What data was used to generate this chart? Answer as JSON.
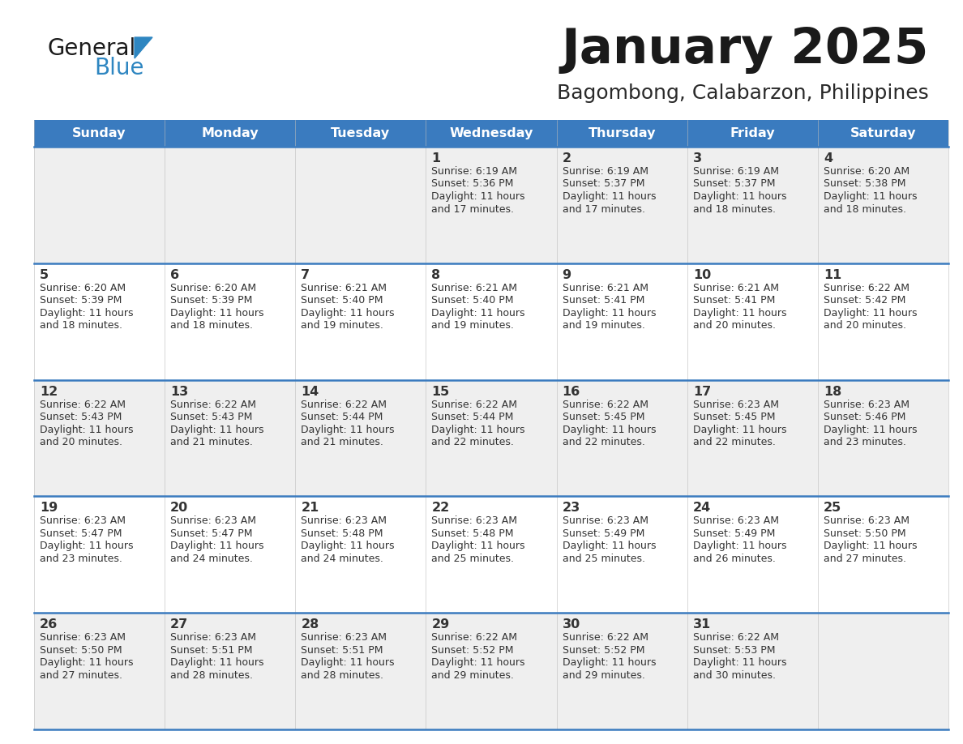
{
  "title": "January 2025",
  "subtitle": "Bagombong, Calabarzon, Philippines",
  "header_bg_color": "#3A7BBF",
  "header_text_color": "#FFFFFF",
  "day_names": [
    "Sunday",
    "Monday",
    "Tuesday",
    "Wednesday",
    "Thursday",
    "Friday",
    "Saturday"
  ],
  "row_colors": [
    "#EFEFEF",
    "#FFFFFF"
  ],
  "border_color": "#3A7BBF",
  "text_color": "#333333",
  "calendar_data": [
    [
      {
        "day": "",
        "sunrise": "",
        "sunset": "",
        "daylight_h": "",
        "daylight_m": ""
      },
      {
        "day": "",
        "sunrise": "",
        "sunset": "",
        "daylight_h": "",
        "daylight_m": ""
      },
      {
        "day": "",
        "sunrise": "",
        "sunset": "",
        "daylight_h": "",
        "daylight_m": ""
      },
      {
        "day": "1",
        "sunrise": "6:19 AM",
        "sunset": "5:36 PM",
        "daylight_h": "11 hours",
        "daylight_m": "and 17 minutes."
      },
      {
        "day": "2",
        "sunrise": "6:19 AM",
        "sunset": "5:37 PM",
        "daylight_h": "11 hours",
        "daylight_m": "and 17 minutes."
      },
      {
        "day": "3",
        "sunrise": "6:19 AM",
        "sunset": "5:37 PM",
        "daylight_h": "11 hours",
        "daylight_m": "and 18 minutes."
      },
      {
        "day": "4",
        "sunrise": "6:20 AM",
        "sunset": "5:38 PM",
        "daylight_h": "11 hours",
        "daylight_m": "and 18 minutes."
      }
    ],
    [
      {
        "day": "5",
        "sunrise": "6:20 AM",
        "sunset": "5:39 PM",
        "daylight_h": "11 hours",
        "daylight_m": "and 18 minutes."
      },
      {
        "day": "6",
        "sunrise": "6:20 AM",
        "sunset": "5:39 PM",
        "daylight_h": "11 hours",
        "daylight_m": "and 18 minutes."
      },
      {
        "day": "7",
        "sunrise": "6:21 AM",
        "sunset": "5:40 PM",
        "daylight_h": "11 hours",
        "daylight_m": "and 19 minutes."
      },
      {
        "day": "8",
        "sunrise": "6:21 AM",
        "sunset": "5:40 PM",
        "daylight_h": "11 hours",
        "daylight_m": "and 19 minutes."
      },
      {
        "day": "9",
        "sunrise": "6:21 AM",
        "sunset": "5:41 PM",
        "daylight_h": "11 hours",
        "daylight_m": "and 19 minutes."
      },
      {
        "day": "10",
        "sunrise": "6:21 AM",
        "sunset": "5:41 PM",
        "daylight_h": "11 hours",
        "daylight_m": "and 20 minutes."
      },
      {
        "day": "11",
        "sunrise": "6:22 AM",
        "sunset": "5:42 PM",
        "daylight_h": "11 hours",
        "daylight_m": "and 20 minutes."
      }
    ],
    [
      {
        "day": "12",
        "sunrise": "6:22 AM",
        "sunset": "5:43 PM",
        "daylight_h": "11 hours",
        "daylight_m": "and 20 minutes."
      },
      {
        "day": "13",
        "sunrise": "6:22 AM",
        "sunset": "5:43 PM",
        "daylight_h": "11 hours",
        "daylight_m": "and 21 minutes."
      },
      {
        "day": "14",
        "sunrise": "6:22 AM",
        "sunset": "5:44 PM",
        "daylight_h": "11 hours",
        "daylight_m": "and 21 minutes."
      },
      {
        "day": "15",
        "sunrise": "6:22 AM",
        "sunset": "5:44 PM",
        "daylight_h": "11 hours",
        "daylight_m": "and 22 minutes."
      },
      {
        "day": "16",
        "sunrise": "6:22 AM",
        "sunset": "5:45 PM",
        "daylight_h": "11 hours",
        "daylight_m": "and 22 minutes."
      },
      {
        "day": "17",
        "sunrise": "6:23 AM",
        "sunset": "5:45 PM",
        "daylight_h": "11 hours",
        "daylight_m": "and 22 minutes."
      },
      {
        "day": "18",
        "sunrise": "6:23 AM",
        "sunset": "5:46 PM",
        "daylight_h": "11 hours",
        "daylight_m": "and 23 minutes."
      }
    ],
    [
      {
        "day": "19",
        "sunrise": "6:23 AM",
        "sunset": "5:47 PM",
        "daylight_h": "11 hours",
        "daylight_m": "and 23 minutes."
      },
      {
        "day": "20",
        "sunrise": "6:23 AM",
        "sunset": "5:47 PM",
        "daylight_h": "11 hours",
        "daylight_m": "and 24 minutes."
      },
      {
        "day": "21",
        "sunrise": "6:23 AM",
        "sunset": "5:48 PM",
        "daylight_h": "11 hours",
        "daylight_m": "and 24 minutes."
      },
      {
        "day": "22",
        "sunrise": "6:23 AM",
        "sunset": "5:48 PM",
        "daylight_h": "11 hours",
        "daylight_m": "and 25 minutes."
      },
      {
        "day": "23",
        "sunrise": "6:23 AM",
        "sunset": "5:49 PM",
        "daylight_h": "11 hours",
        "daylight_m": "and 25 minutes."
      },
      {
        "day": "24",
        "sunrise": "6:23 AM",
        "sunset": "5:49 PM",
        "daylight_h": "11 hours",
        "daylight_m": "and 26 minutes."
      },
      {
        "day": "25",
        "sunrise": "6:23 AM",
        "sunset": "5:50 PM",
        "daylight_h": "11 hours",
        "daylight_m": "and 27 minutes."
      }
    ],
    [
      {
        "day": "26",
        "sunrise": "6:23 AM",
        "sunset": "5:50 PM",
        "daylight_h": "11 hours",
        "daylight_m": "and 27 minutes."
      },
      {
        "day": "27",
        "sunrise": "6:23 AM",
        "sunset": "5:51 PM",
        "daylight_h": "11 hours",
        "daylight_m": "and 28 minutes."
      },
      {
        "day": "28",
        "sunrise": "6:23 AM",
        "sunset": "5:51 PM",
        "daylight_h": "11 hours",
        "daylight_m": "and 28 minutes."
      },
      {
        "day": "29",
        "sunrise": "6:22 AM",
        "sunset": "5:52 PM",
        "daylight_h": "11 hours",
        "daylight_m": "and 29 minutes."
      },
      {
        "day": "30",
        "sunrise": "6:22 AM",
        "sunset": "5:52 PM",
        "daylight_h": "11 hours",
        "daylight_m": "and 29 minutes."
      },
      {
        "day": "31",
        "sunrise": "6:22 AM",
        "sunset": "5:53 PM",
        "daylight_h": "11 hours",
        "daylight_m": "and 30 minutes."
      },
      {
        "day": "",
        "sunrise": "",
        "sunset": "",
        "daylight_h": "",
        "daylight_m": ""
      }
    ]
  ],
  "logo_color_general": "#1a1a1a",
  "logo_color_blue": "#2E86C1",
  "fig_width": 11.88,
  "fig_height": 9.18,
  "dpi": 100
}
